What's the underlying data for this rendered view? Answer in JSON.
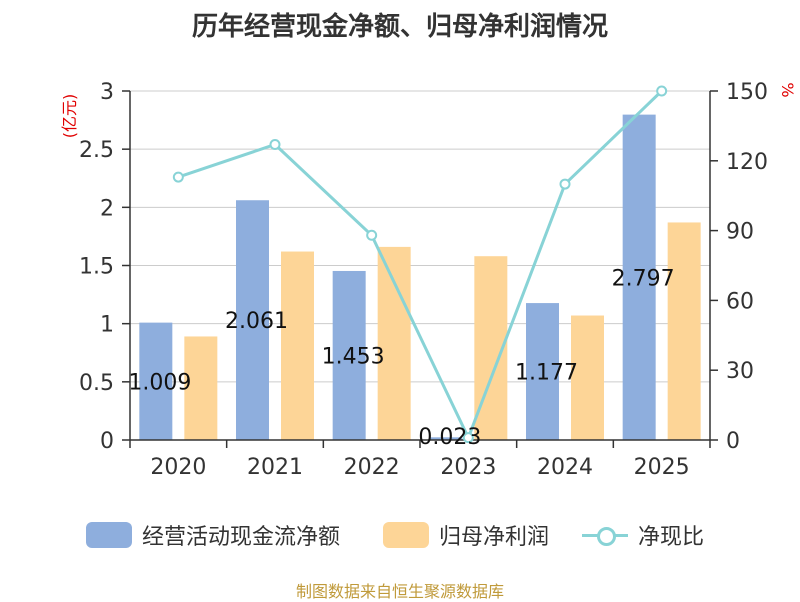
{
  "chart_data": {
    "title": "历年经营现金净额、归母净利润情况",
    "type": "bar",
    "categories": [
      "2020",
      "2021",
      "2022",
      "2023",
      "2024",
      "2025"
    ],
    "y_left": {
      "label": "(亿元)",
      "ticks": [
        "0",
        "0.5",
        "1",
        "1.5",
        "2",
        "2.5",
        "3"
      ],
      "range": [
        0,
        3
      ]
    },
    "y_right": {
      "label": "%",
      "ticks": [
        "0",
        "30",
        "60",
        "90",
        "120",
        "150"
      ],
      "range": [
        0,
        150
      ]
    },
    "series": [
      {
        "name": "经营活动现金流净额",
        "type": "bar",
        "axis": "left",
        "color": "#8eaedd",
        "values": [
          1.009,
          2.061,
          1.453,
          0.023,
          1.177,
          2.797
        ],
        "labels": [
          "1.009",
          "2.061",
          "1.453",
          "0.023",
          "1.177",
          "2.797"
        ]
      },
      {
        "name": "归母净利润",
        "type": "bar",
        "axis": "left",
        "color": "#fdd597",
        "values": [
          0.89,
          1.62,
          1.66,
          1.58,
          1.07,
          1.87
        ]
      },
      {
        "name": "净现比",
        "type": "line",
        "axis": "right",
        "color": "#88d3d6",
        "values": [
          113,
          127,
          88,
          1,
          110,
          150
        ]
      }
    ],
    "grid": true,
    "legend_position": "bottom"
  },
  "source": "制图数据来自恒生聚源数据库"
}
